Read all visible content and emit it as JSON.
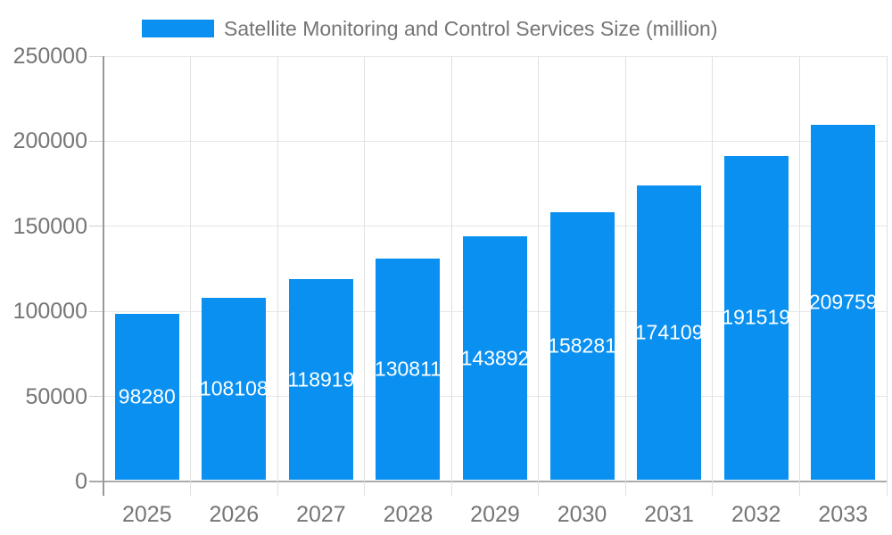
{
  "chart_data": {
    "type": "bar",
    "title": "Satellite Monitoring and Control Services Size (million)",
    "categories": [
      "2025",
      "2026",
      "2027",
      "2028",
      "2029",
      "2030",
      "2031",
      "2032",
      "2033"
    ],
    "values": [
      98280,
      108108,
      118919,
      130811,
      143892,
      158281,
      174109,
      191519,
      209759
    ],
    "xlabel": "",
    "ylabel": "",
    "ylim": [
      0,
      250000
    ],
    "yticks": [
      0,
      50000,
      100000,
      150000,
      200000,
      250000
    ],
    "grid": true,
    "legend_position": "top",
    "colors": {
      "bar": "#0a90f0",
      "axis_text": "#757575",
      "value_label": "#ffffff",
      "gridline": "#e6e6e6",
      "axis_line": "#999999"
    }
  }
}
